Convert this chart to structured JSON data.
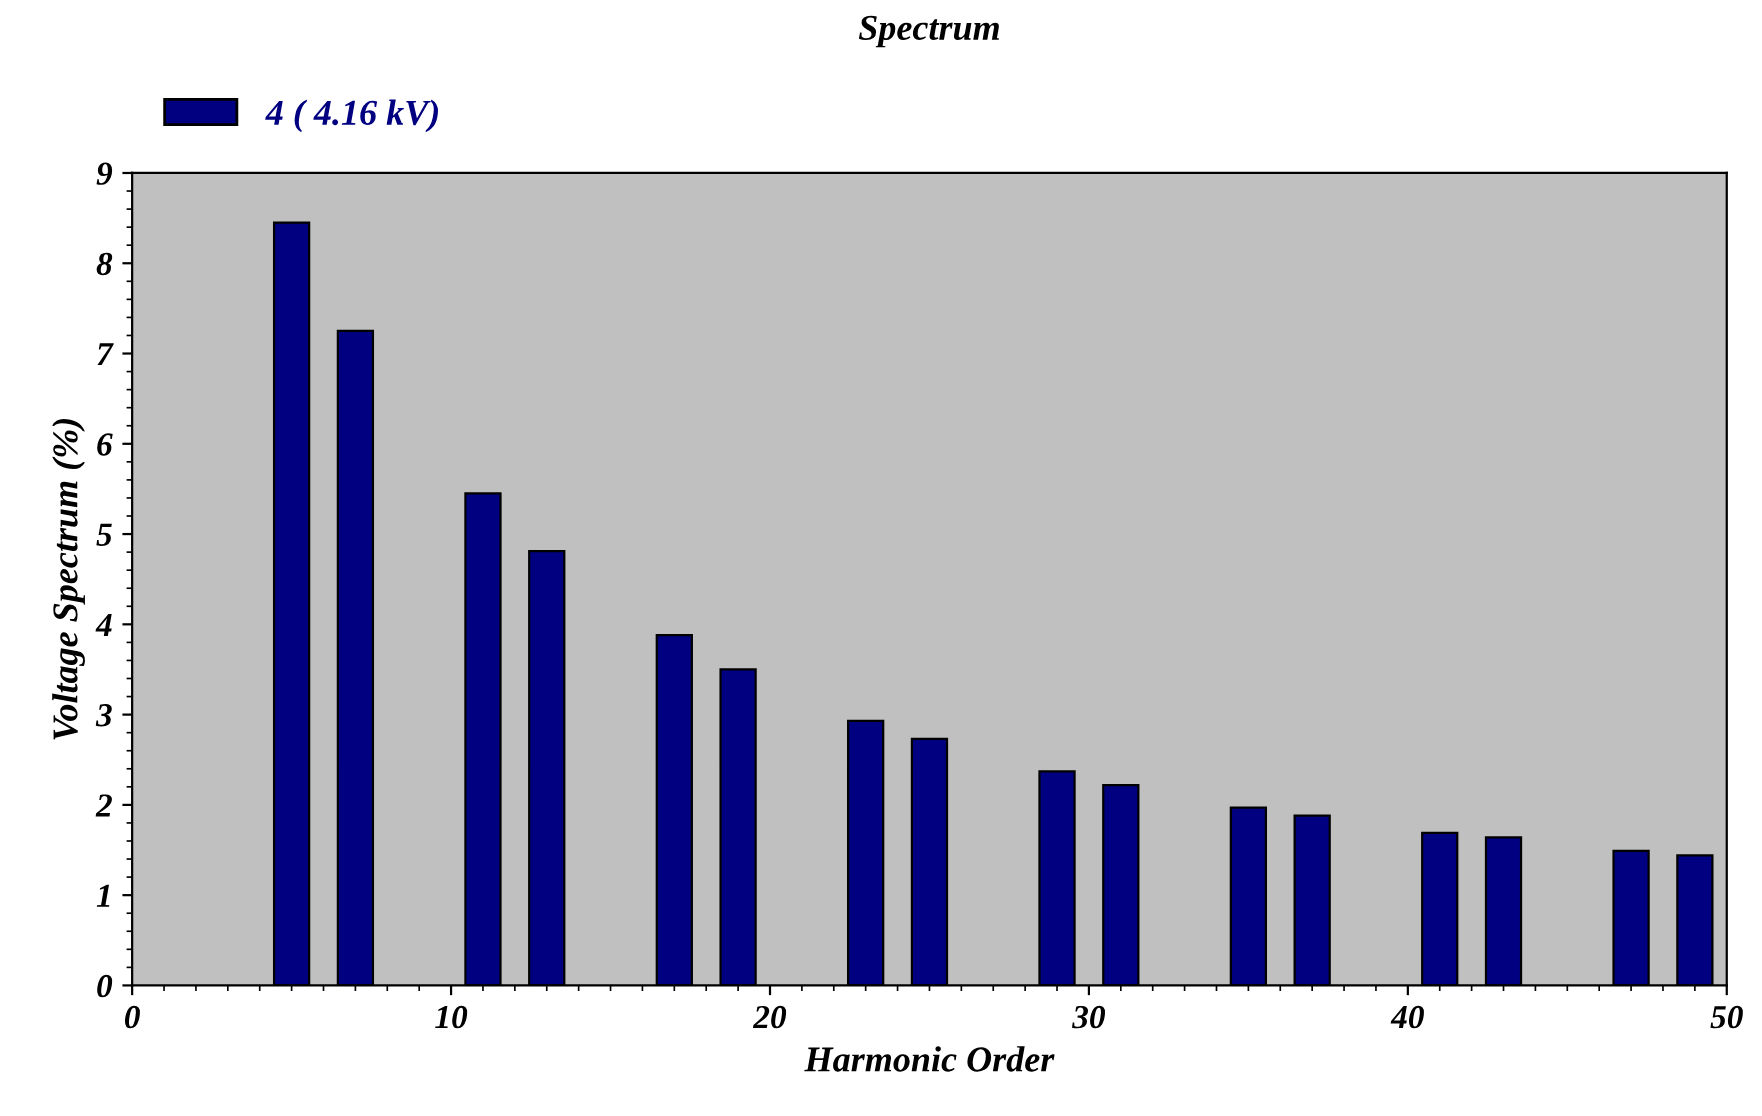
{
  "chart_data": {
    "type": "bar",
    "title": "Spectrum",
    "xlabel": "Harmonic Order",
    "ylabel": "Voltage Spectrum (%)",
    "x": [
      5,
      7,
      11,
      13,
      17,
      19,
      23,
      25,
      29,
      31,
      35,
      37,
      41,
      43,
      47,
      49
    ],
    "series": [
      {
        "name": "4 ( 4.16 kV)",
        "color": "#000080",
        "values": [
          8.45,
          7.25,
          5.45,
          4.81,
          3.88,
          3.5,
          2.93,
          2.73,
          2.37,
          2.22,
          1.97,
          1.88,
          1.69,
          1.64,
          1.49,
          1.44
        ]
      }
    ],
    "xlim": [
      0,
      50
    ],
    "xticks": [
      0,
      10,
      20,
      30,
      40,
      50
    ],
    "ylim": [
      0,
      9
    ],
    "yticks": [
      0,
      1,
      2,
      3,
      4,
      5,
      6,
      7,
      8,
      9
    ],
    "grid": false,
    "legend": "top left"
  }
}
